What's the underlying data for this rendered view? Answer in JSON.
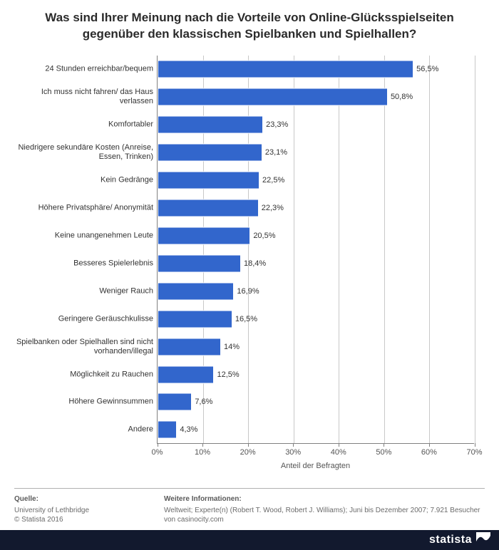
{
  "title_line1": "Was sind Ihrer Meinung nach die Vorteile von Online-Glücksspielseiten",
  "title_line2": "gegenüber den klassischen Spielbanken und Spielhallen?",
  "chart": {
    "type": "bar-horizontal",
    "bar_color": "#3266cc",
    "grid_color": "#c8c8c8",
    "axis_color": "#808080",
    "text_color": "#333333",
    "background_color": "#ffffff",
    "label_fontsize": 11,
    "xmax": 70,
    "xtick_step": 10,
    "xaxis_title": "Anteil der Befragten",
    "categories": [
      "24 Stunden erreichbar/bequem",
      "Ich muss nicht fahren/ das Haus verlassen",
      "Komfortabler",
      "Niedrigere sekundäre Kosten (Anreise, Essen, Trinken)",
      "Kein Gedränge",
      "Höhere Privatsphäre/ Anonymität",
      "Keine unangenehmen Leute",
      "Besseres Spielerlebnis",
      "Weniger Rauch",
      "Geringere Geräuschkulisse",
      "Spielbanken oder Spielhallen sind nicht vorhanden/illegal",
      "Möglichkeit zu Rauchen",
      "Höhere Gewinnsummen",
      "Andere"
    ],
    "values": [
      56.5,
      50.8,
      23.3,
      23.1,
      22.5,
      22.3,
      20.5,
      18.4,
      16.9,
      16.5,
      14,
      12.5,
      7.6,
      4.3
    ],
    "value_labels": [
      "56,5%",
      "50,8%",
      "23,3%",
      "23,1%",
      "22,5%",
      "22,3%",
      "20,5%",
      "18,4%",
      "16,9%",
      "16,5%",
      "14%",
      "12,5%",
      "7,6%",
      "4,3%"
    ]
  },
  "footer": {
    "left_heading": "Quelle:",
    "left_line1": "University of Lethbridge",
    "left_line2": "© Statista 2016",
    "right_heading": "Weitere Informationen:",
    "right_text": "Weltweit; Experte(n) (Robert T. Wood, Robert J. Williams); Juni bis Dezember 2007; 7.921 Besucher von casinocity.com"
  },
  "logo": {
    "text": "statista",
    "bg": "#12192e",
    "fg": "#ffffff"
  }
}
